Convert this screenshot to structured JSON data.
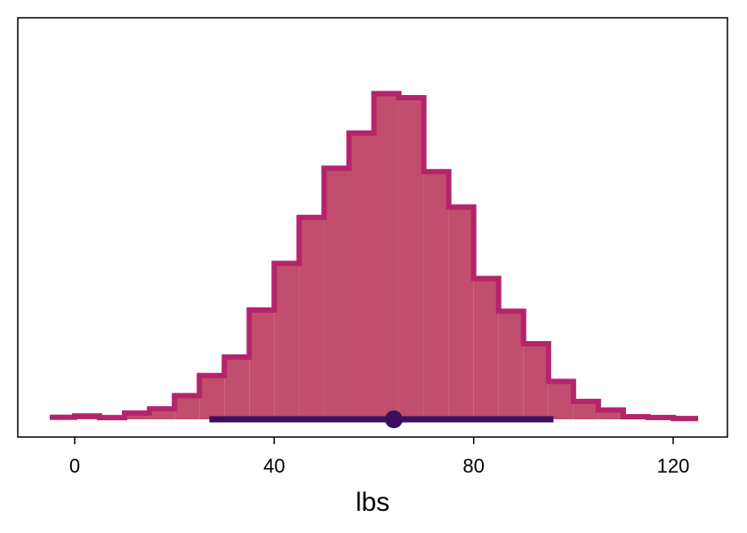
{
  "chart_data": {
    "type": "histogram",
    "xlabel": "lbs",
    "xlim": [
      -5,
      127
    ],
    "x_ticks": [
      0,
      40,
      80,
      120
    ],
    "y_ticks_shown": false,
    "grid": false,
    "bin_edges": [
      -5,
      0,
      5,
      10,
      15,
      20,
      25,
      30,
      35,
      40,
      45,
      50,
      55,
      60,
      65,
      70,
      75,
      80,
      85,
      90,
      95,
      100,
      105,
      110,
      115,
      120,
      125
    ],
    "bin_heights": [
      1.6,
      2.6,
      1.3,
      4.9,
      8.2,
      18.5,
      34.2,
      48.7,
      85.4,
      121.9,
      157.8,
      196.3,
      223.8,
      254.6,
      251.4,
      193.6,
      165.9,
      110.1,
      84.5,
      59.0,
      29.6,
      14.0,
      7.3,
      2.0,
      1.4,
      0.6
    ],
    "ylim": [
      0,
      275
    ],
    "interval": {
      "low": 27,
      "high": 96,
      "point": 64
    },
    "colors": {
      "fill": "#c14e6e",
      "outline": "#b5246a",
      "interval": "#3b0f5e",
      "frame": "#000000"
    }
  }
}
